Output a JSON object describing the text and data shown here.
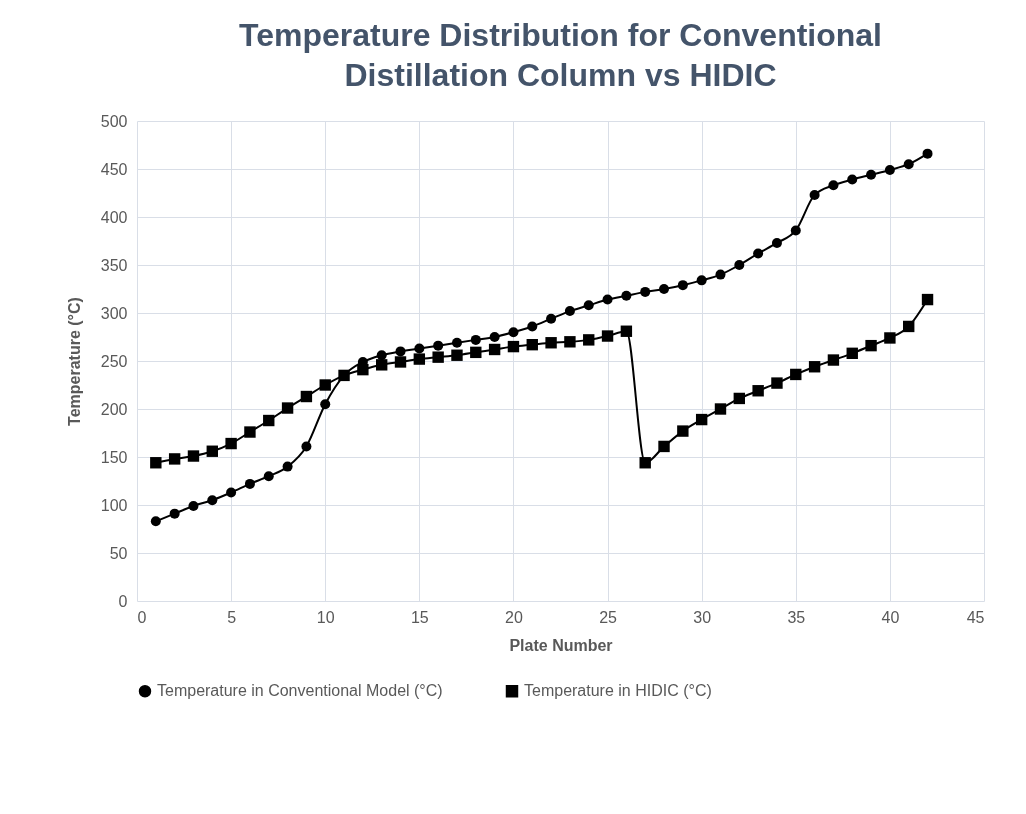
{
  "chart_data": {
    "type": "line",
    "title": "Temperature Distribution for Conventional Distillation Column vs HIDIC",
    "xlabel": "Plate Number",
    "ylabel": "Temperature (°C)",
    "x": [
      1,
      2,
      3,
      4,
      5,
      6,
      7,
      8,
      9,
      10,
      11,
      12,
      13,
      14,
      15,
      16,
      17,
      18,
      19,
      20,
      21,
      22,
      23,
      24,
      25,
      26,
      27,
      28,
      29,
      30,
      31,
      32,
      33,
      34,
      35,
      36,
      37,
      38,
      39,
      40,
      41,
      42
    ],
    "series": [
      {
        "name": "Temperature in Conventional Model (°C)",
        "color": "#000000",
        "marker": "circle",
        "values": [
          83,
          91,
          99,
          105,
          113,
          122,
          130,
          140,
          161,
          205,
          235,
          249,
          256,
          260,
          263,
          266,
          269,
          272,
          275,
          280,
          286,
          294,
          302,
          308,
          314,
          318,
          322,
          325,
          329,
          334,
          340,
          350,
          362,
          373,
          386,
          423,
          433,
          439,
          444,
          449,
          455,
          466
        ]
      },
      {
        "name": "Temperature in HIDIC (°C)",
        "color": "#000000",
        "marker": "square",
        "values": [
          144,
          148,
          151,
          156,
          164,
          176,
          188,
          201,
          213,
          225,
          235,
          241,
          246,
          249,
          252,
          254,
          256,
          259,
          262,
          265,
          267,
          269,
          270,
          272,
          276,
          281,
          144,
          161,
          177,
          189,
          200,
          211,
          219,
          227,
          236,
          244,
          251,
          258,
          266,
          274,
          286,
          314
        ]
      }
    ],
    "xlim": [
      0,
      45
    ],
    "xticks": [
      0,
      5,
      10,
      15,
      20,
      25,
      30,
      35,
      40,
      45
    ],
    "ylim": [
      0,
      500
    ],
    "yticks": [
      0,
      50,
      100,
      150,
      200,
      250,
      300,
      350,
      400,
      450,
      500
    ],
    "grid": true,
    "legend": "bottom"
  }
}
